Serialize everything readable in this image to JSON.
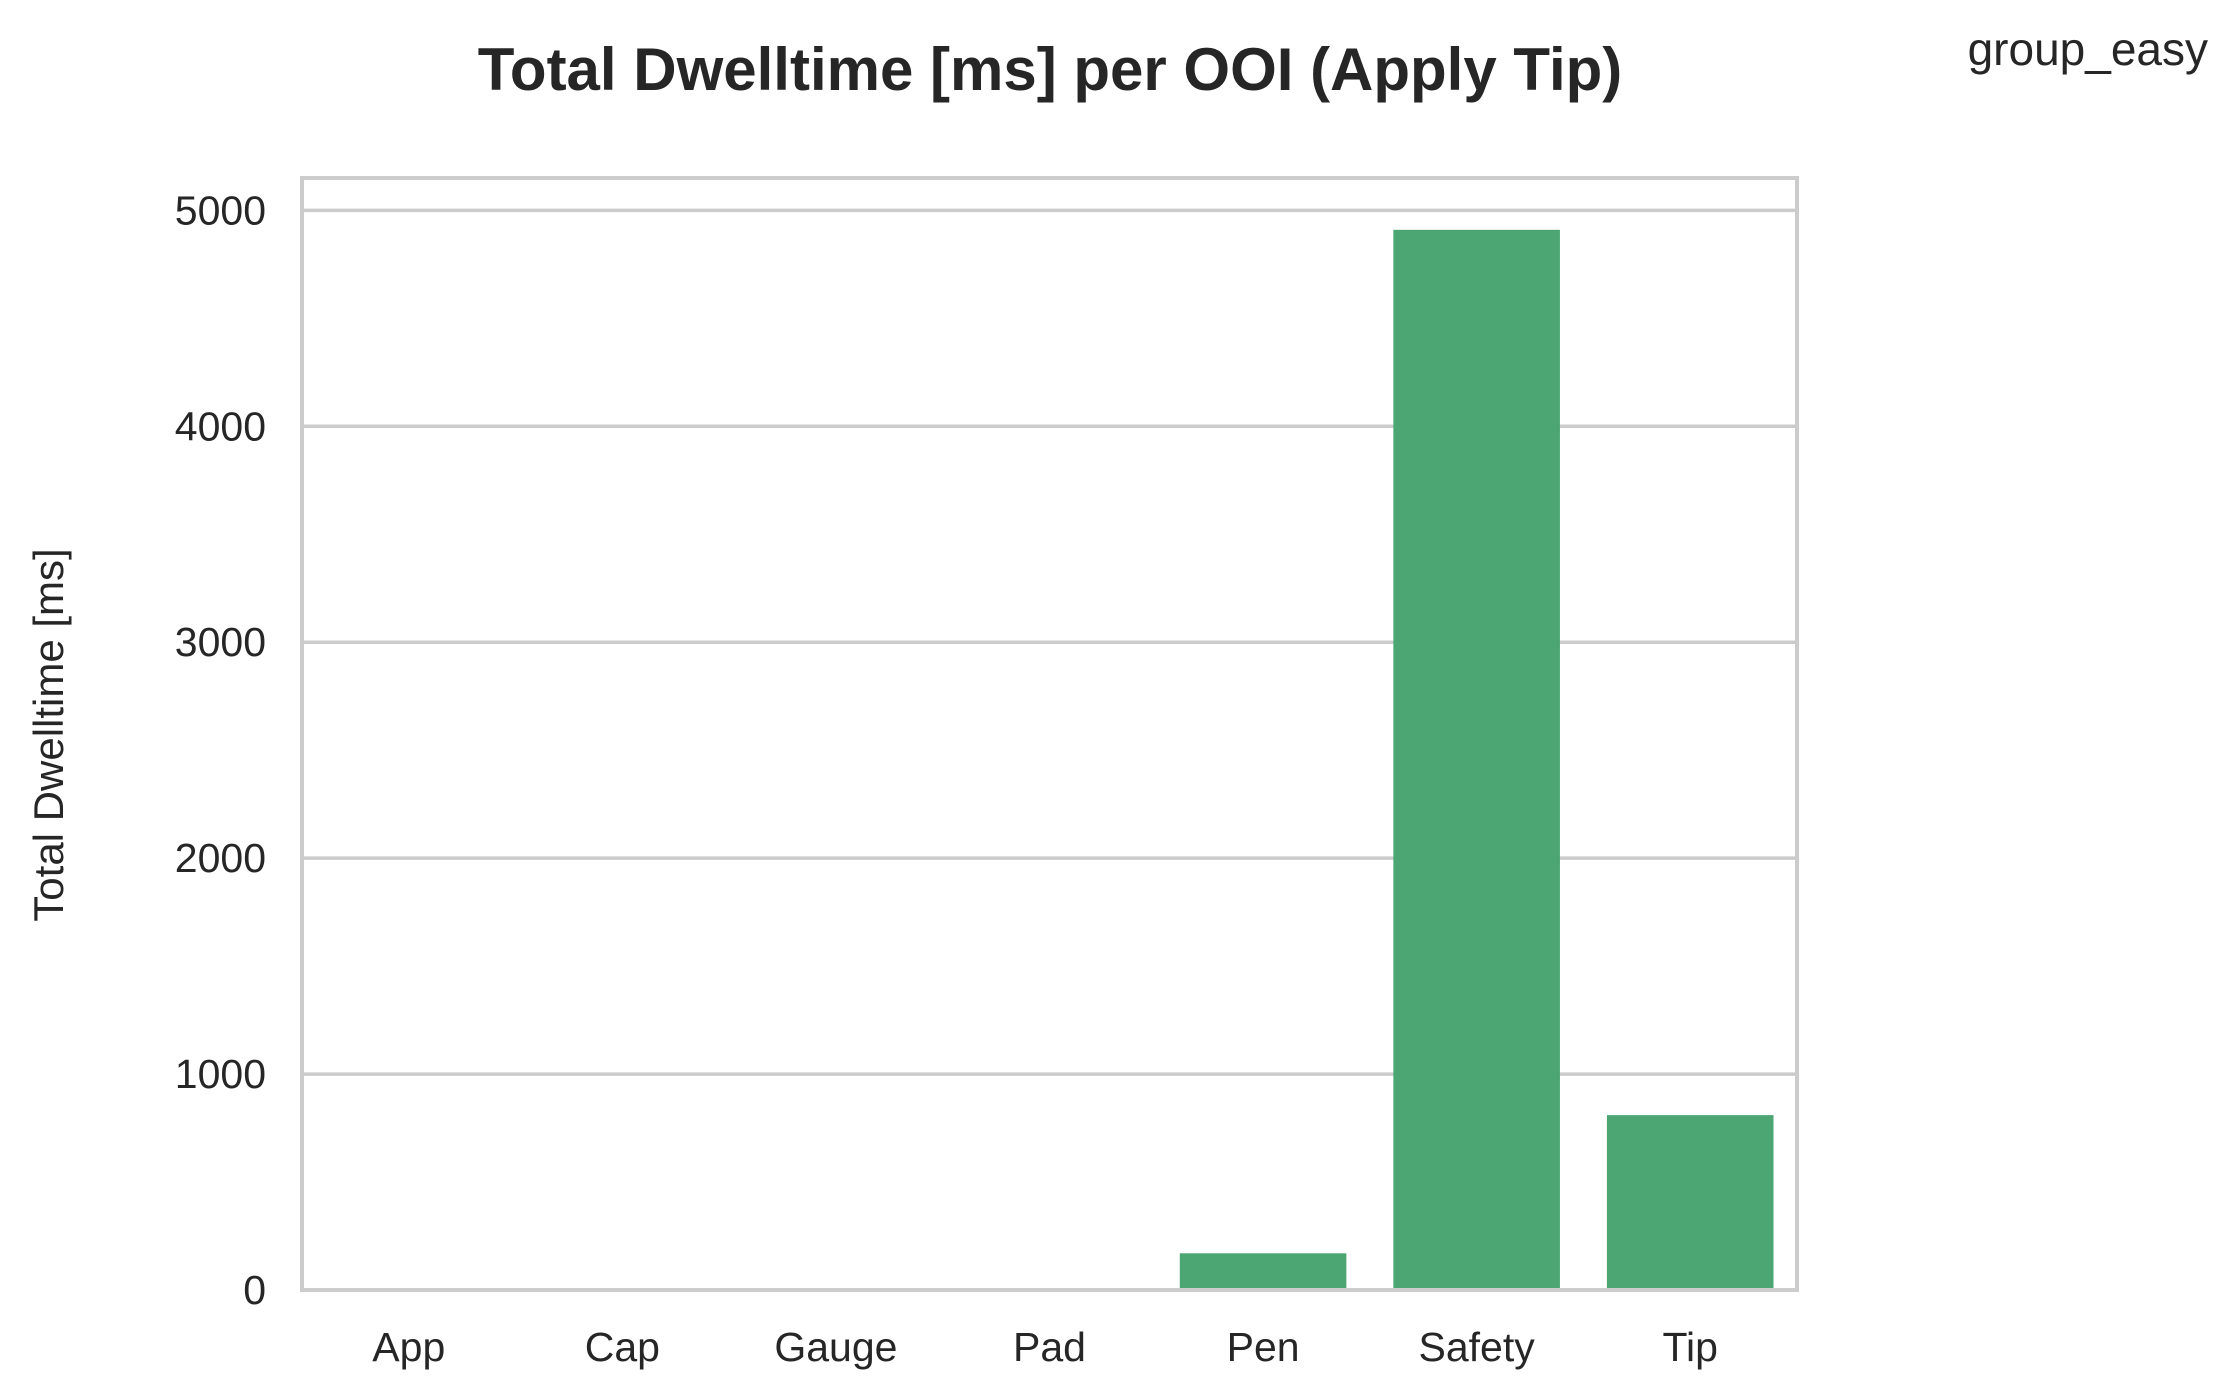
{
  "chart_data": {
    "type": "bar",
    "title": "Total Dwelltime [ms] per OOI (Apply Tip)",
    "xlabel": "",
    "ylabel": "Total Dwelltime [ms]",
    "legend": {
      "title": "group_easy",
      "placement": "top-right"
    },
    "categories": [
      "App",
      "Cap",
      "Gauge",
      "Pad",
      "Pen",
      "Safety",
      "Tip"
    ],
    "series": [
      {
        "values": [
          0,
          0,
          0,
          0,
          170,
          4910,
          810
        ],
        "color": "#4ca674"
      }
    ],
    "ylim": [
      0,
      5150
    ],
    "yticks": [
      0,
      1000,
      2000,
      3000,
      4000,
      5000
    ],
    "grid": "horizontal",
    "colors": {
      "bar": "#4ca674",
      "grid": "#cccccc",
      "frame": "#cccccc",
      "text": "#262626"
    }
  }
}
